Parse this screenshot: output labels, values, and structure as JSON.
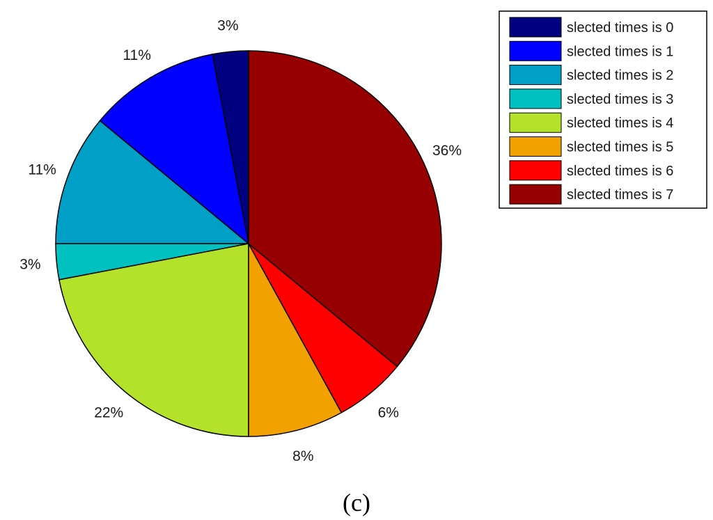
{
  "chart_data": {
    "type": "pie",
    "title": "",
    "panel_label": "(c)",
    "slices": [
      {
        "label": "slected times is 0",
        "value": 3,
        "display": "3%",
        "color": "#000080"
      },
      {
        "label": "slected times is 1",
        "value": 11,
        "display": "11%",
        "color": "#0000ff"
      },
      {
        "label": "slected times is 2",
        "value": 11,
        "display": "11%",
        "color": "#009fc6"
      },
      {
        "label": "slected times is 3",
        "value": 3,
        "display": "3%",
        "color": "#00c0c0"
      },
      {
        "label": "slected times is 4",
        "value": 22,
        "display": "22%",
        "color": "#b4e22b"
      },
      {
        "label": "slected times is 5",
        "value": 8,
        "display": "8%",
        "color": "#f2a200"
      },
      {
        "label": "slected times is 6",
        "value": 6,
        "display": "6%",
        "color": "#ff0000"
      },
      {
        "label": "slected times is 7",
        "value": 36,
        "display": "36%",
        "color": "#960000"
      }
    ],
    "start_angle_deg": 90,
    "direction": "counterclockwise",
    "legend_position": "top-right"
  }
}
